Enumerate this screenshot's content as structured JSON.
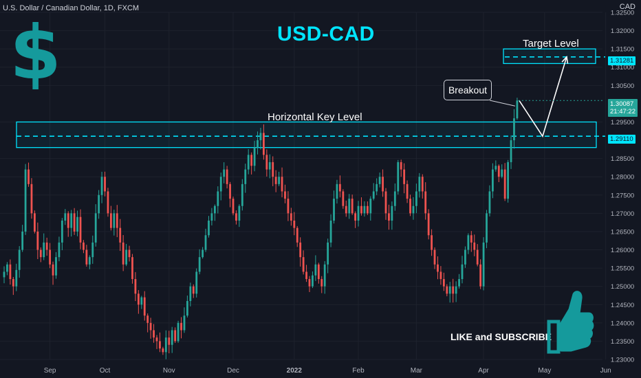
{
  "header": {
    "symbol": "U.S. Dollar / Canadian Dollar, 1D, FXCM",
    "currency": "CAD"
  },
  "title": "USD-CAD",
  "dollar_sign": "$",
  "annotations": {
    "key_level_label": "Horizontal Key Level",
    "target_label": "Target Level",
    "breakout_label": "Breakout",
    "cta": "LIKE and SUBSCRIBE"
  },
  "price_tags": {
    "target": "1.31281",
    "key": "1.29110",
    "last_price": "1.30087",
    "countdown": "21:47:22"
  },
  "colors": {
    "background": "#131722",
    "up": "#26a69a",
    "down": "#ef5350",
    "accent": "#00e5ff",
    "grid": "#1e222d",
    "dollar_sign": "#159a9c"
  },
  "icons": [
    "dollar-sign-icon",
    "thumbs-up-icon"
  ],
  "chart_data": {
    "type": "candlestick",
    "timeframe": "1D",
    "ylim": [
      1.23,
      1.325
    ],
    "y_ticks": [
      "1.32500",
      "1.32000",
      "1.31500",
      "1.31000",
      "1.30500",
      "1.29500",
      "1.28500",
      "1.28000",
      "1.27500",
      "1.27000",
      "1.26500",
      "1.26000",
      "1.25500",
      "1.25000",
      "1.24500",
      "1.24000",
      "1.23500",
      "1.23000"
    ],
    "x_ticks": [
      "Sep",
      "Oct",
      "Nov",
      "Dec",
      "2022",
      "Feb",
      "Mar",
      "Apr",
      "May",
      "Jun"
    ],
    "grid": true,
    "key_level": 1.2911,
    "key_zone": [
      1.288,
      1.295
    ],
    "target_level": 1.31281,
    "target_zone": [
      1.311,
      1.315
    ],
    "last_price": 1.30087,
    "closes": [
      1.254,
      1.256,
      1.252,
      1.25,
      1.2545,
      1.26,
      1.265,
      1.282,
      1.278,
      1.27,
      1.265,
      1.26,
      1.258,
      1.262,
      1.26,
      1.256,
      1.253,
      1.258,
      1.262,
      1.268,
      1.27,
      1.266,
      1.27,
      1.265,
      1.269,
      1.262,
      1.26,
      1.256,
      1.258,
      1.262,
      1.27,
      1.275,
      1.28,
      1.276,
      1.27,
      1.266,
      1.27,
      1.266,
      1.262,
      1.256,
      1.26,
      1.258,
      1.252,
      1.248,
      1.245,
      1.247,
      1.242,
      1.24,
      1.238,
      1.236,
      1.235,
      1.233,
      1.232,
      1.236,
      1.234,
      1.238,
      1.235,
      1.24,
      1.238,
      1.242,
      1.246,
      1.25,
      1.248,
      1.254,
      1.258,
      1.26,
      1.264,
      1.268,
      1.27,
      1.272,
      1.276,
      1.28,
      1.282,
      1.278,
      1.274,
      1.27,
      1.268,
      1.272,
      1.278,
      1.282,
      1.286,
      1.283,
      1.288,
      1.29,
      1.292,
      1.286,
      1.282,
      1.284,
      1.28,
      1.278,
      1.28,
      1.276,
      1.274,
      1.27,
      1.268,
      1.266,
      1.262,
      1.258,
      1.254,
      1.252,
      1.25,
      1.253,
      1.256,
      1.252,
      1.25,
      1.256,
      1.262,
      1.268,
      1.274,
      1.278,
      1.276,
      1.272,
      1.27,
      1.274,
      1.27,
      1.268,
      1.272,
      1.27,
      1.272,
      1.27,
      1.274,
      1.276,
      1.278,
      1.28,
      1.276,
      1.27,
      1.268,
      1.272,
      1.276,
      1.284,
      1.282,
      1.278,
      1.274,
      1.27,
      1.272,
      1.276,
      1.28,
      1.276,
      1.27,
      1.264,
      1.26,
      1.256,
      1.254,
      1.252,
      1.25,
      1.248,
      1.25,
      1.248,
      1.25,
      1.252,
      1.256,
      1.26,
      1.264,
      1.262,
      1.26,
      1.256,
      1.25,
      1.262,
      1.27,
      1.276,
      1.282,
      1.283,
      1.28,
      1.282,
      1.274,
      1.284,
      1.29,
      1.296,
      1.30087
    ]
  }
}
